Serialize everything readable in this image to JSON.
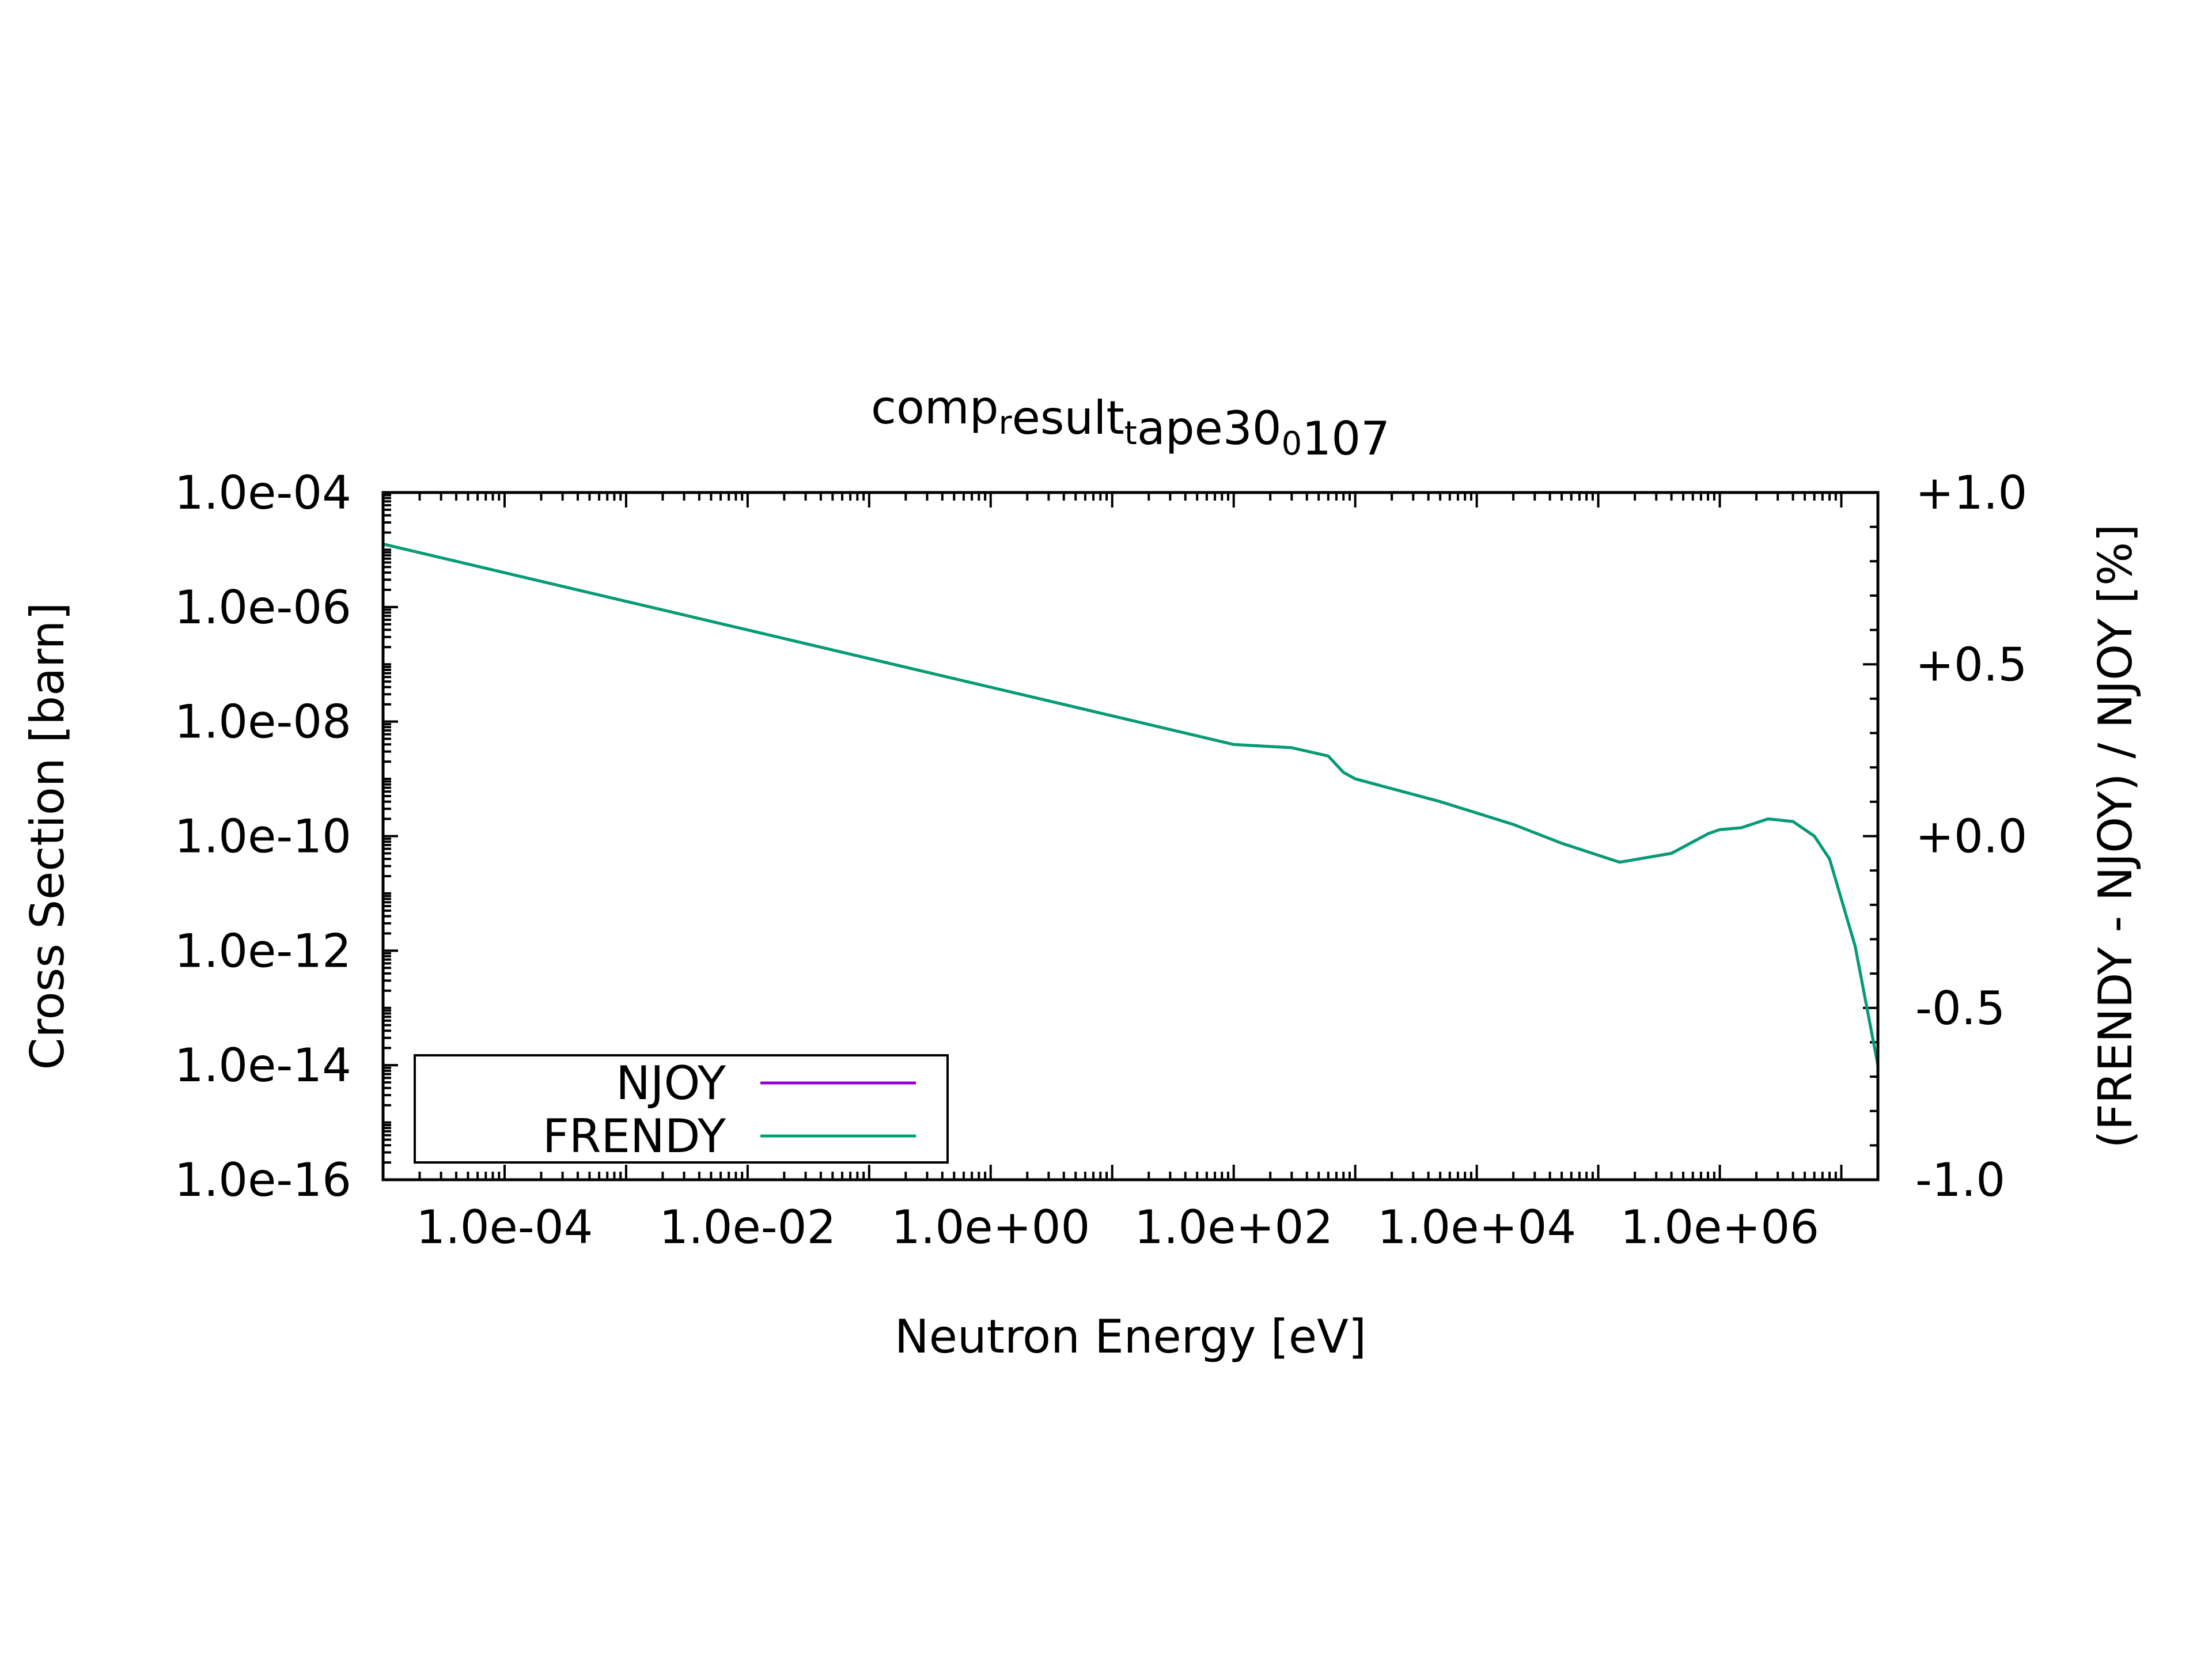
{
  "chart_data": {
    "type": "line",
    "title": {
      "parts": [
        {
          "text": "comp",
          "sub": false
        },
        {
          "text": "r",
          "sub": true
        },
        {
          "text": "esult",
          "sub": false
        },
        {
          "text": "t",
          "sub": true
        },
        {
          "text": "ape30",
          "sub": false
        },
        {
          "text": "0",
          "sub": true
        },
        {
          "text": "107",
          "sub": false
        }
      ]
    },
    "xlabel": "Neutron Energy [eV]",
    "ylabel": "Cross Section [barn]",
    "y2label": "(FRENDY - NJOY) / NJOY [%]",
    "x_scale": "log",
    "y_scale": "log",
    "xlim": [
      1e-05,
      20000000.0
    ],
    "ylim": [
      1e-16,
      0.0001
    ],
    "y2lim": [
      -1.0,
      1.0
    ],
    "x_ticks": [
      {
        "value": 0.0001,
        "label": "1.0e-04"
      },
      {
        "value": 0.01,
        "label": "1.0e-02"
      },
      {
        "value": 1,
        "label": "1.0e+00"
      },
      {
        "value": 100,
        "label": "1.0e+02"
      },
      {
        "value": 10000,
        "label": "1.0e+04"
      },
      {
        "value": 1000000,
        "label": "1.0e+06"
      }
    ],
    "y_ticks": [
      {
        "value": 0.0001,
        "label": "1.0e-04"
      },
      {
        "value": 1e-06,
        "label": "1.0e-06"
      },
      {
        "value": 1e-08,
        "label": "1.0e-08"
      },
      {
        "value": 1e-10,
        "label": "1.0e-10"
      },
      {
        "value": 1e-12,
        "label": "1.0e-12"
      },
      {
        "value": 1e-14,
        "label": "1.0e-14"
      },
      {
        "value": 1e-16,
        "label": "1.0e-16"
      }
    ],
    "y2_ticks": [
      {
        "value": 1.0,
        "label": "+1.0"
      },
      {
        "value": 0.5,
        "label": "+0.5"
      },
      {
        "value": 0.0,
        "label": "+0.0"
      },
      {
        "value": -0.5,
        "label": "-0.5"
      },
      {
        "value": -1.0,
        "label": "-1.0"
      }
    ],
    "legend_position": "bottom-left",
    "grid": false,
    "series": [
      {
        "name": "NJOY",
        "color": "#9400d3",
        "x": [
          1e-05,
          0.0001,
          0.001,
          0.01,
          0.1,
          1,
          10,
          100,
          300,
          600,
          800,
          1000,
          5000,
          20000,
          50000,
          150000,
          400000,
          800000,
          1000000,
          1500000,
          2500000,
          4000000,
          6000000,
          8000000,
          10000000.0,
          13000000.0,
          20000000.0
        ],
        "y": [
          1.26e-05,
          3.98e-06,
          1.26e-06,
          3.98e-07,
          1.26e-07,
          3.98e-08,
          1.26e-08,
          3.98e-09,
          3.5e-09,
          2.5e-09,
          1.3e-09,
          1e-09,
          4e-10,
          1.6e-10,
          7.5e-11,
          3.5e-11,
          5e-11,
          1.1e-10,
          1.3e-10,
          1.4e-10,
          2e-10,
          1.8e-10,
          1e-10,
          4e-11,
          8e-12,
          1.2e-12,
          1e-14
        ]
      },
      {
        "name": "FRENDY",
        "color": "#009e73",
        "x": [
          1e-05,
          0.0001,
          0.001,
          0.01,
          0.1,
          1,
          10,
          100,
          300,
          600,
          800,
          1000,
          5000,
          20000,
          50000,
          150000,
          400000,
          800000,
          1000000,
          1500000,
          2500000,
          4000000,
          6000000,
          8000000,
          10000000.0,
          13000000.0,
          20000000.0
        ],
        "y": [
          1.26e-05,
          3.98e-06,
          1.26e-06,
          3.98e-07,
          1.26e-07,
          3.98e-08,
          1.26e-08,
          3.98e-09,
          3.5e-09,
          2.5e-09,
          1.3e-09,
          1e-09,
          4e-10,
          1.6e-10,
          7.5e-11,
          3.5e-11,
          5e-11,
          1.1e-10,
          1.3e-10,
          1.4e-10,
          2e-10,
          1.8e-10,
          1e-10,
          4e-11,
          8e-12,
          1.2e-12,
          1e-14
        ]
      }
    ]
  }
}
